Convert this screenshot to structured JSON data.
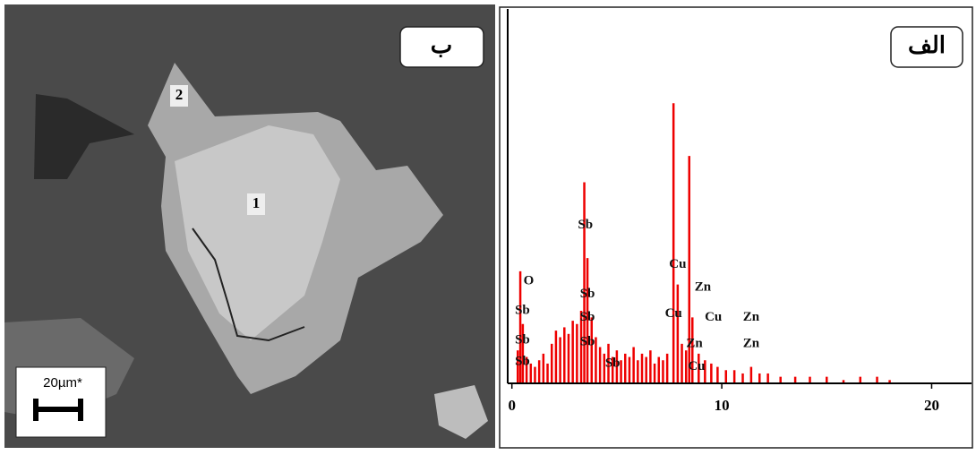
{
  "image_panel": {
    "panel_label": "ب",
    "points": [
      "1",
      "2"
    ],
    "scale_bar": "20µm*"
  },
  "chart_data": {
    "type": "spectrum",
    "panel_label": "الف",
    "color": "#ee0000",
    "x": [
      0.28,
      0.4,
      0.52,
      0.7,
      0.9,
      1.1,
      1.3,
      1.5,
      1.7,
      1.9,
      2.1,
      2.3,
      2.5,
      2.7,
      2.9,
      3.1,
      3.3,
      3.45,
      3.6,
      3.8,
      4.0,
      4.2,
      4.4,
      4.6,
      4.8,
      5.0,
      5.2,
      5.4,
      5.6,
      5.8,
      6.0,
      6.2,
      6.4,
      6.6,
      6.8,
      7.0,
      7.2,
      7.4,
      7.7,
      7.9,
      8.1,
      8.3,
      8.45,
      8.6,
      8.9,
      9.2,
      9.5,
      9.8,
      10.2,
      10.6,
      11.0,
      11.4,
      11.8,
      12.2,
      12.8,
      13.5,
      14.2,
      15.0,
      15.8,
      16.6,
      17.4,
      18.0
    ],
    "values": [
      10,
      34,
      18,
      8,
      6,
      5,
      7,
      9,
      6,
      12,
      16,
      14,
      17,
      15,
      19,
      18,
      22,
      61,
      38,
      20,
      14,
      11,
      9,
      12,
      8,
      10,
      7,
      9,
      8,
      11,
      7,
      9,
      8,
      10,
      6,
      8,
      7,
      9,
      85,
      30,
      12,
      10,
      69,
      20,
      9,
      7,
      6,
      5,
      4,
      4,
      3,
      5,
      3,
      3,
      2,
      2,
      2,
      2,
      1,
      2,
      2,
      1
    ],
    "xlim": [
      -0.2,
      21.9
    ],
    "xticks": [
      0,
      10,
      20
    ],
    "ylim": [
      0,
      100
    ],
    "annotations": [
      {
        "text": "O",
        "x": 0.8,
        "y": 31
      },
      {
        "text": "Sb",
        "x": 0.5,
        "y": 22
      },
      {
        "text": "Sb",
        "x": 0.5,
        "y": 13
      },
      {
        "text": "Sb",
        "x": 0.5,
        "y": 6.5
      },
      {
        "text": "Sb",
        "x": 3.5,
        "y": 48
      },
      {
        "text": "Sb",
        "x": 3.6,
        "y": 27
      },
      {
        "text": "Sb",
        "x": 3.6,
        "y": 20
      },
      {
        "text": "Sb",
        "x": 3.6,
        "y": 12.5
      },
      {
        "text": "Sb",
        "x": 4.8,
        "y": 6
      },
      {
        "text": "Cu",
        "x": 7.9,
        "y": 36
      },
      {
        "text": "Cu",
        "x": 7.7,
        "y": 21
      },
      {
        "text": "Cu",
        "x": 9.6,
        "y": 20
      },
      {
        "text": "Cu",
        "x": 8.8,
        "y": 5
      },
      {
        "text": "Zn",
        "x": 9.1,
        "y": 29
      },
      {
        "text": "Zn",
        "x": 8.7,
        "y": 12
      },
      {
        "text": "Zn",
        "x": 11.4,
        "y": 20
      },
      {
        "text": "Zn",
        "x": 11.4,
        "y": 12
      }
    ]
  }
}
